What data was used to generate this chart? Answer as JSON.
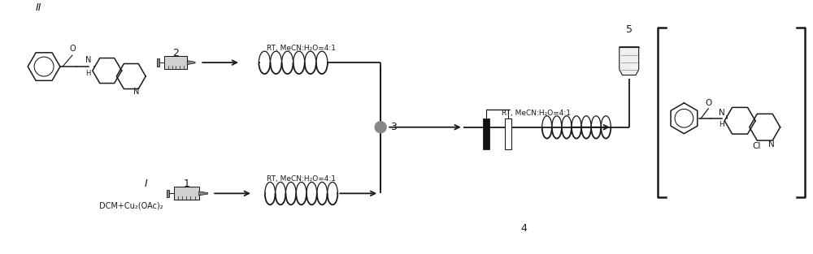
{
  "bg_color": "#ffffff",
  "line_color": "#1a1a1a",
  "text_dcm": "DCM+Cu₂(OAc)₂",
  "text_rt1": "RT, MeCN:H₂O=4:1",
  "text_rt2": "RT, MeCN:H₂O=4:1",
  "text_rt3": "RT, MeCN:H₂O=4:1",
  "label_I": "I",
  "label_II": "II",
  "label_1": "1",
  "label_2": "2",
  "label_3": "3",
  "label_4": "4",
  "label_5": "5",
  "figsize": [
    10.0,
    3.13
  ],
  "dpi": 100
}
